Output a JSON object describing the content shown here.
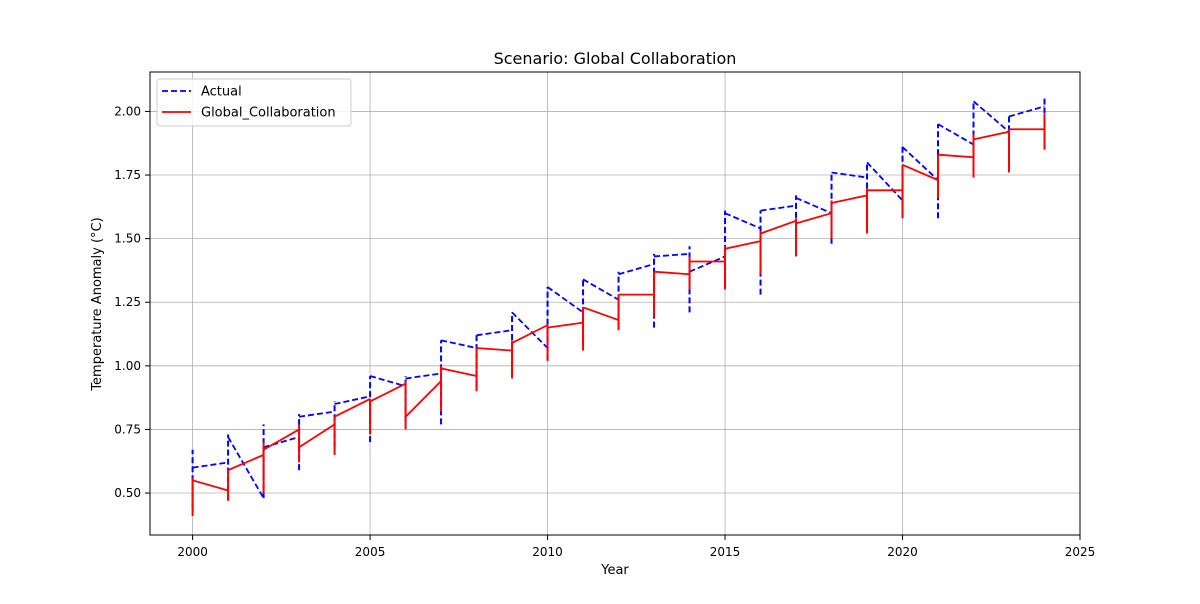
{
  "chart_data": {
    "type": "line",
    "title": "Scenario: Global Collaboration",
    "xlabel": "Year",
    "ylabel": "Temperature Anomaly (°C)",
    "xlim": [
      1998.8,
      2025.0
    ],
    "ylim": [
      0.335,
      2.155
    ],
    "xticks": [
      2000,
      2005,
      2010,
      2015,
      2020,
      2025
    ],
    "yticks": [
      0.5,
      0.75,
      1.0,
      1.25,
      1.5,
      1.75,
      2.0
    ],
    "ytick_labels": [
      "0.50",
      "0.75",
      "1.00",
      "1.25",
      "1.50",
      "1.75",
      "2.00"
    ],
    "grid": true,
    "legend_position": "top-left",
    "x": [
      2000,
      2001,
      2002,
      2003,
      2004,
      2005,
      2006,
      2007,
      2008,
      2009,
      2010,
      2011,
      2012,
      2013,
      2014,
      2015,
      2016,
      2017,
      2018,
      2019,
      2020,
      2021,
      2022,
      2023,
      2024
    ],
    "series": [
      {
        "name": "Actual",
        "color": "#0000ff",
        "style": "dashed",
        "start": [
          0.57,
          0.62,
          0.48,
          0.72,
          0.82,
          0.88,
          0.92,
          0.97,
          1.07,
          1.14,
          1.07,
          1.21,
          1.26,
          1.4,
          1.44,
          1.43,
          1.54,
          1.63,
          1.6,
          1.74,
          1.65,
          1.73,
          1.87,
          1.92,
          2.02
        ],
        "end": [
          0.6,
          0.72,
          0.68,
          0.8,
          0.85,
          0.96,
          0.95,
          1.1,
          1.12,
          1.21,
          1.31,
          1.34,
          1.36,
          1.43,
          1.37,
          1.6,
          1.61,
          1.66,
          1.76,
          1.8,
          1.86,
          1.95,
          2.04,
          1.98,
          2.06
        ],
        "low": [
          0.44,
          0.47,
          0.48,
          0.59,
          0.68,
          0.7,
          0.78,
          0.77,
          0.92,
          0.96,
          1.02,
          1.1,
          1.15,
          1.15,
          1.21,
          1.31,
          1.28,
          1.44,
          1.48,
          1.52,
          1.59,
          1.58,
          1.76,
          1.78,
          1.85
        ],
        "high": [
          0.67,
          0.73,
          0.77,
          0.81,
          0.86,
          0.96,
          0.96,
          1.1,
          1.12,
          1.21,
          1.31,
          1.34,
          1.37,
          1.44,
          1.47,
          1.61,
          1.61,
          1.67,
          1.76,
          1.8,
          1.87,
          1.95,
          2.04,
          1.98,
          2.06
        ]
      },
      {
        "name": "Global_Collaboration",
        "color": "#ff0000",
        "style": "solid",
        "start": [
          0.5,
          0.51,
          0.65,
          0.75,
          0.77,
          0.87,
          0.93,
          0.94,
          0.96,
          1.06,
          1.16,
          1.17,
          1.18,
          1.28,
          1.36,
          1.41,
          1.49,
          1.57,
          1.6,
          1.67,
          1.69,
          1.73,
          1.82,
          1.92,
          1.93
        ],
        "end": [
          0.55,
          0.59,
          0.67,
          0.68,
          0.8,
          0.86,
          0.8,
          0.99,
          1.07,
          1.09,
          1.15,
          1.23,
          1.28,
          1.37,
          1.41,
          1.46,
          1.52,
          1.56,
          1.64,
          1.69,
          1.79,
          1.83,
          1.89,
          1.93,
          1.99
        ],
        "low": [
          0.41,
          0.47,
          0.5,
          0.62,
          0.65,
          0.73,
          0.75,
          0.82,
          0.9,
          0.95,
          1.02,
          1.06,
          1.14,
          1.19,
          1.3,
          1.3,
          1.36,
          1.43,
          1.5,
          1.52,
          1.58,
          1.66,
          1.74,
          1.76,
          1.85
        ],
        "high": [
          0.56,
          0.59,
          0.7,
          0.77,
          0.8,
          0.87,
          0.94,
          1.0,
          1.07,
          1.1,
          1.16,
          1.23,
          1.28,
          1.37,
          1.43,
          1.47,
          1.53,
          1.58,
          1.65,
          1.7,
          1.79,
          1.83,
          1.91,
          1.93,
          1.99
        ]
      }
    ]
  }
}
